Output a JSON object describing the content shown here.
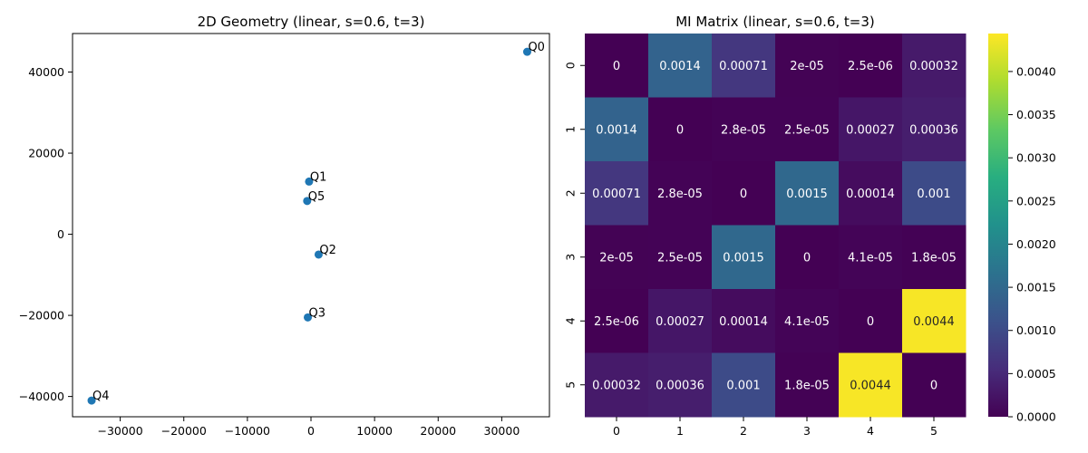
{
  "chart_data": [
    {
      "type": "scatter",
      "title": "2D Geometry (linear, s=0.6, t=3)",
      "xlabel": "",
      "ylabel": "",
      "xlim": [
        -37500,
        37500
      ],
      "ylim": [
        -45000,
        49500
      ],
      "xticks": [
        -30000,
        -20000,
        -10000,
        0,
        10000,
        20000,
        30000
      ],
      "yticks": [
        -40000,
        -20000,
        0,
        20000,
        40000
      ],
      "grid": false,
      "marker_color": "#1f77b4",
      "points": [
        {
          "label": "Q0",
          "x": 34000,
          "y": 45000
        },
        {
          "label": "Q1",
          "x": -300,
          "y": 13000
        },
        {
          "label": "Q2",
          "x": 1200,
          "y": -5000
        },
        {
          "label": "Q3",
          "x": -500,
          "y": -20500
        },
        {
          "label": "Q4",
          "x": -34500,
          "y": -41000
        },
        {
          "label": "Q5",
          "x": -600,
          "y": 8200
        }
      ]
    },
    {
      "type": "heatmap",
      "title": "MI Matrix (linear, s=0.6, t=3)",
      "xlabel": "",
      "ylabel": "",
      "colormap": "viridis",
      "vmin": 0,
      "vmax": 0.00444,
      "row_labels": [
        "0",
        "1",
        "2",
        "3",
        "4",
        "5"
      ],
      "col_labels": [
        "0",
        "1",
        "2",
        "3",
        "4",
        "5"
      ],
      "values": [
        [
          0,
          0.0014,
          0.00071,
          2e-05,
          2.5e-06,
          0.00032
        ],
        [
          0.0014,
          0,
          2.8e-05,
          2.5e-05,
          0.00027,
          0.00036
        ],
        [
          0.00071,
          2.8e-05,
          0,
          0.0015,
          0.00014,
          0.001
        ],
        [
          2e-05,
          2.5e-05,
          0.0015,
          0,
          4.1e-05,
          1.8e-05
        ],
        [
          2.5e-06,
          0.00027,
          0.00014,
          4.1e-05,
          0,
          0.0044
        ],
        [
          0.00032,
          0.00036,
          0.001,
          1.8e-05,
          0.0044,
          0
        ]
      ],
      "annotations": [
        [
          "0",
          "0.0014",
          "0.00071",
          "2e-05",
          "2.5e-06",
          "0.00032"
        ],
        [
          "0.0014",
          "0",
          "2.8e-05",
          "2.5e-05",
          "0.00027",
          "0.00036"
        ],
        [
          "0.00071",
          "2.8e-05",
          "0",
          "0.0015",
          "0.00014",
          "0.001"
        ],
        [
          "2e-05",
          "2.5e-05",
          "0.0015",
          "0",
          "4.1e-05",
          "1.8e-05"
        ],
        [
          "2.5e-06",
          "0.00027",
          "0.00014",
          "4.1e-05",
          "0",
          "0.0044"
        ],
        [
          "0.00032",
          "0.00036",
          "0.001",
          "1.8e-05",
          "0.0044",
          "0"
        ]
      ],
      "colorbar_ticks": [
        "0.0000",
        "0.0005",
        "0.0010",
        "0.0015",
        "0.0020",
        "0.0025",
        "0.0030",
        "0.0035",
        "0.0040"
      ],
      "colorbar_tick_values": [
        0,
        0.0005,
        0.001,
        0.0015,
        0.002,
        0.0025,
        0.003,
        0.0035,
        0.004
      ]
    }
  ]
}
